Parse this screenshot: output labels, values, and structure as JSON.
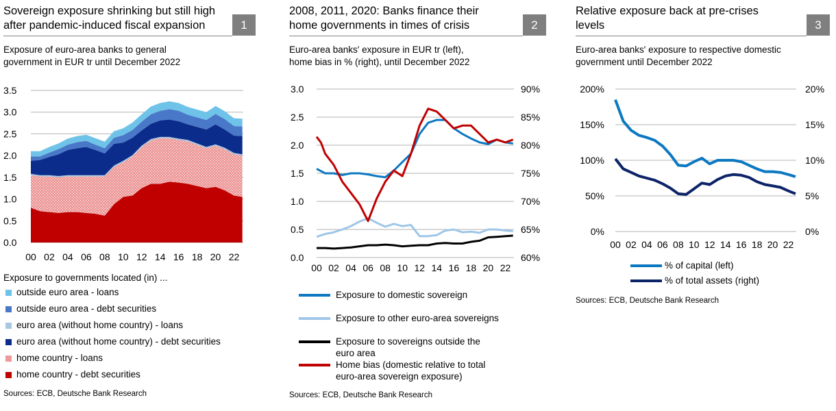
{
  "colors": {
    "home_debt": "#c00000",
    "home_loans": "#ed9a9a",
    "ea_debt": "#0c2c8c",
    "ea_loans": "#a9c6e2",
    "out_debt": "#4a78c8",
    "out_loans": "#6fc3e8",
    "domestic": "#0b78c1",
    "other_ea": "#9fc6e8",
    "outside": "#000000",
    "home_bias": "#c00000",
    "capital": "#0b78c1",
    "total_assets": "#0c2368",
    "grid": "#b3b3b3"
  },
  "panels": [
    {
      "title_line1": "Sovereign exposure shrinking but still high",
      "title_line2": "after pandemic-induced fiscal expansion",
      "number": "1",
      "subtitle_line1": "Exposure of euro-area banks to general",
      "subtitle_line2": "government in EUR tr until December 2022",
      "legend_title": "Exposure to governments located (in) ...",
      "legend": [
        "outside euro area - loans",
        "outside euro area - debt securities",
        "euro area (without home country) - loans",
        "euro area (without home country) - debt securities",
        "home country - loans",
        "home country - debt securities"
      ],
      "source": "Sources: ECB, Deutsche Bank Research"
    },
    {
      "title_line1": "2008, 2011, 2020: Banks finance their",
      "title_line2": "home governments in times of crisis",
      "number": "2",
      "subtitle_line1": "Euro-area banks' exposure in EUR tr (left),",
      "subtitle_line2": "home bias in % (right), until December 2022",
      "legend": [
        "Exposure to domestic sovereign",
        "Exposure to other euro-area sovereigns",
        "Exposure to sovereigns outside the",
        "euro area",
        "Home bias (domestic relative to total",
        "euro-area sovereign exposure)"
      ],
      "source": "Sources: ECB, Deutsche Bank Research"
    },
    {
      "title_line1": "Relative exposure back at pre-crises",
      "title_line2": "levels",
      "number": "3",
      "subtitle_line1": "Euro-area banks' exposure to respective domestic",
      "subtitle_line2": "government until December 2022",
      "legend": [
        "% of capital (left)",
        "% of total assets (right)"
      ],
      "source": "Sources: ECB, Deutsche Bank Research"
    }
  ],
  "chart_data": [
    {
      "type": "area",
      "title": "Exposure of euro-area banks to general government in EUR tr until December 2022",
      "x_ticks": [
        "00",
        "02",
        "04",
        "06",
        "08",
        "10",
        "12",
        "14",
        "16",
        "18",
        "20",
        "22"
      ],
      "y_ticks": [
        "0.0",
        "0.5",
        "1.0",
        "1.5",
        "2.0",
        "2.5",
        "3.0",
        "3.5"
      ],
      "ylim": [
        0,
        3.5
      ],
      "x": [
        2000,
        2001,
        2002,
        2003,
        2004,
        2005,
        2006,
        2007,
        2008,
        2009,
        2010,
        2011,
        2012,
        2013,
        2014,
        2015,
        2016,
        2017,
        2018,
        2019,
        2020,
        2021,
        2022,
        2022.9
      ],
      "stacked": true,
      "series": [
        {
          "name": "home country - debt securities",
          "values": [
            0.8,
            0.72,
            0.7,
            0.68,
            0.7,
            0.7,
            0.68,
            0.66,
            0.62,
            0.88,
            1.05,
            1.08,
            1.25,
            1.35,
            1.35,
            1.4,
            1.38,
            1.35,
            1.3,
            1.25,
            1.28,
            1.2,
            1.08,
            1.05
          ]
        },
        {
          "name": "home country - loans",
          "values": [
            0.75,
            0.8,
            0.82,
            0.82,
            0.82,
            0.82,
            0.84,
            0.86,
            0.9,
            0.86,
            0.8,
            0.9,
            0.95,
            1.0,
            1.05,
            1.0,
            0.98,
            0.98,
            0.95,
            0.92,
            0.95,
            0.95,
            0.95,
            0.95
          ]
        },
        {
          "name": "euro area (without home country) - loans",
          "values": [
            0.03,
            0.03,
            0.03,
            0.03,
            0.03,
            0.03,
            0.03,
            0.03,
            0.03,
            0.03,
            0.03,
            0.03,
            0.03,
            0.03,
            0.03,
            0.03,
            0.03,
            0.03,
            0.03,
            0.03,
            0.03,
            0.03,
            0.03,
            0.03
          ]
        },
        {
          "name": "euro area (without home country) - debt securities",
          "values": [
            0.3,
            0.35,
            0.42,
            0.5,
            0.58,
            0.62,
            0.65,
            0.58,
            0.5,
            0.5,
            0.42,
            0.4,
            0.35,
            0.35,
            0.38,
            0.4,
            0.4,
            0.36,
            0.38,
            0.4,
            0.46,
            0.42,
            0.4,
            0.42
          ]
        },
        {
          "name": "outside euro area - debt securities",
          "values": [
            0.1,
            0.08,
            0.1,
            0.12,
            0.12,
            0.14,
            0.14,
            0.12,
            0.12,
            0.14,
            0.17,
            0.18,
            0.2,
            0.22,
            0.22,
            0.24,
            0.24,
            0.22,
            0.22,
            0.22,
            0.24,
            0.24,
            0.22,
            0.22
          ]
        },
        {
          "name": "outside euro area - loans",
          "values": [
            0.12,
            0.12,
            0.13,
            0.13,
            0.14,
            0.14,
            0.14,
            0.15,
            0.15,
            0.15,
            0.16,
            0.17,
            0.17,
            0.18,
            0.18,
            0.18,
            0.18,
            0.18,
            0.18,
            0.18,
            0.18,
            0.18,
            0.18,
            0.18
          ]
        }
      ]
    },
    {
      "type": "line",
      "title": "Euro-area banks' exposure in EUR tr (left), home bias in % (right), until December 2022",
      "x_ticks": [
        "00",
        "02",
        "04",
        "06",
        "08",
        "10",
        "12",
        "14",
        "16",
        "18",
        "20",
        "22"
      ],
      "y_ticks_left": [
        "0.0",
        "0.5",
        "1.0",
        "1.5",
        "2.0",
        "2.5",
        "3.0"
      ],
      "y_ticks_right": [
        "60%",
        "65%",
        "70%",
        "75%",
        "80%",
        "85%",
        "90%"
      ],
      "ylim_left": [
        0,
        3.0
      ],
      "ylim_right": [
        60,
        90
      ],
      "series": [
        {
          "name": "Exposure to domestic sovereign",
          "axis": "left",
          "x": [
            2000,
            2001,
            2002,
            2003,
            2004,
            2005,
            2006,
            2007,
            2008,
            2009,
            2010,
            2011,
            2012,
            2013,
            2014,
            2015,
            2016,
            2017,
            2018,
            2019,
            2020,
            2021,
            2022,
            2022.9
          ],
          "values": [
            1.58,
            1.5,
            1.5,
            1.47,
            1.5,
            1.5,
            1.48,
            1.45,
            1.43,
            1.55,
            1.7,
            1.85,
            2.2,
            2.4,
            2.45,
            2.45,
            2.3,
            2.2,
            2.12,
            2.05,
            2.02,
            2.1,
            2.05,
            2.03
          ]
        },
        {
          "name": "Exposure to other euro-area sovereigns",
          "axis": "left",
          "x": [
            2000,
            2001,
            2002,
            2003,
            2004,
            2005,
            2006,
            2007,
            2008,
            2009,
            2010,
            2011,
            2012,
            2013,
            2014,
            2015,
            2016,
            2017,
            2018,
            2019,
            2020,
            2021,
            2022,
            2022.9
          ],
          "values": [
            0.37,
            0.42,
            0.45,
            0.5,
            0.56,
            0.64,
            0.7,
            0.62,
            0.55,
            0.6,
            0.56,
            0.58,
            0.38,
            0.38,
            0.4,
            0.48,
            0.5,
            0.45,
            0.46,
            0.44,
            0.5,
            0.5,
            0.48,
            0.47
          ]
        },
        {
          "name": "Exposure to sovereigns outside the euro area",
          "axis": "left",
          "x": [
            2000,
            2001,
            2002,
            2003,
            2004,
            2005,
            2006,
            2007,
            2008,
            2009,
            2010,
            2011,
            2012,
            2013,
            2014,
            2015,
            2016,
            2017,
            2018,
            2019,
            2020,
            2021,
            2022,
            2022.9
          ],
          "values": [
            0.17,
            0.17,
            0.16,
            0.17,
            0.18,
            0.2,
            0.22,
            0.22,
            0.23,
            0.22,
            0.2,
            0.21,
            0.22,
            0.22,
            0.25,
            0.26,
            0.25,
            0.25,
            0.28,
            0.3,
            0.36,
            0.37,
            0.38,
            0.39
          ]
        },
        {
          "name": "Home bias (domestic relative to total euro-area sovereign exposure)",
          "axis": "right",
          "x": [
            2000,
            2000.5,
            2001,
            2002,
            2003,
            2004,
            2005,
            2006,
            2006.5,
            2007,
            2008,
            2009,
            2010,
            2011,
            2012,
            2013,
            2014,
            2015,
            2016,
            2017,
            2018,
            2019,
            2020,
            2021,
            2022,
            2022.9
          ],
          "values": [
            81.5,
            80.5,
            78.5,
            76.5,
            73.5,
            71.5,
            69.5,
            66.5,
            68.5,
            70.5,
            73.5,
            75.5,
            74.5,
            78.5,
            83.5,
            86.5,
            86.0,
            84.5,
            83.0,
            83.5,
            83.5,
            82.0,
            80.5,
            81.0,
            80.5,
            81.0
          ]
        }
      ]
    },
    {
      "type": "line",
      "title": "Euro-area banks' exposure to respective domestic government until December 2022",
      "x_ticks": [
        "00",
        "02",
        "04",
        "06",
        "08",
        "10",
        "12",
        "14",
        "16",
        "18",
        "20",
        "22"
      ],
      "y_ticks_left": [
        "0%",
        "50%",
        "100%",
        "150%",
        "200%"
      ],
      "y_ticks_right": [
        "0%",
        "5%",
        "10%",
        "15%",
        "20%"
      ],
      "ylim_left": [
        0,
        200
      ],
      "ylim_right": [
        0,
        20
      ],
      "series": [
        {
          "name": "% of capital (left)",
          "axis": "left",
          "x": [
            2000,
            2001,
            2002,
            2003,
            2004,
            2005,
            2006,
            2007,
            2008,
            2009,
            2010,
            2011,
            2012,
            2013,
            2014,
            2015,
            2016,
            2017,
            2018,
            2019,
            2020,
            2021,
            2022,
            2022.9
          ],
          "values": [
            185,
            155,
            142,
            135,
            132,
            128,
            120,
            108,
            93,
            92,
            98,
            103,
            95,
            100,
            100,
            100,
            98,
            93,
            88,
            84,
            84,
            83,
            80,
            77
          ]
        },
        {
          "name": "% of total assets (right)",
          "axis": "right",
          "x": [
            2000,
            2001,
            2002,
            2003,
            2004,
            2005,
            2006,
            2007,
            2008,
            2009,
            2010,
            2011,
            2012,
            2013,
            2014,
            2015,
            2016,
            2017,
            2018,
            2019,
            2020,
            2021,
            2022,
            2022.9
          ],
          "values": [
            10.2,
            8.8,
            8.3,
            7.8,
            7.5,
            7.2,
            6.7,
            6.1,
            5.3,
            5.2,
            6.0,
            6.8,
            6.6,
            7.3,
            7.8,
            8.0,
            7.9,
            7.6,
            7.0,
            6.6,
            6.4,
            6.2,
            5.7,
            5.3
          ]
        }
      ]
    }
  ]
}
